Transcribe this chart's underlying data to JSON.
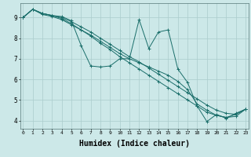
{
  "bg_color": "#cce8e8",
  "grid_color": "#aacccc",
  "line_color": "#1a6e6a",
  "marker": "+",
  "xlabel": "Humidex (Indice chaleur)",
  "xlabel_fontsize": 7,
  "yticks": [
    4,
    5,
    6,
    7,
    8,
    9
  ],
  "xticks": [
    0,
    1,
    2,
    3,
    4,
    5,
    6,
    7,
    8,
    9,
    10,
    11,
    12,
    13,
    14,
    15,
    16,
    17,
    18,
    19,
    20,
    21,
    22,
    23
  ],
  "ylim": [
    3.6,
    9.7
  ],
  "xlim": [
    -0.3,
    23.3
  ],
  "lines": [
    {
      "x": [
        0,
        1,
        2,
        3,
        4,
        5,
        6,
        7,
        8,
        9,
        10,
        11,
        12,
        13,
        14,
        15,
        16,
        17,
        18,
        19,
        20,
        21,
        22,
        23
      ],
      "y": [
        9.0,
        9.4,
        9.2,
        9.1,
        9.05,
        8.85,
        7.65,
        6.65,
        6.6,
        6.65,
        7.0,
        7.0,
        8.9,
        7.5,
        8.3,
        8.4,
        6.5,
        5.85,
        4.7,
        3.95,
        4.3,
        4.1,
        4.35,
        4.55
      ]
    },
    {
      "x": [
        0,
        1,
        2,
        3,
        4,
        5,
        6,
        7,
        8,
        9,
        10,
        11,
        12,
        13,
        14,
        15,
        16,
        17,
        18,
        19,
        20,
        21,
        22,
        23
      ],
      "y": [
        9.0,
        9.4,
        9.2,
        9.1,
        9.0,
        8.8,
        8.55,
        8.3,
        8.0,
        7.7,
        7.4,
        7.1,
        6.85,
        6.55,
        6.25,
        5.95,
        5.65,
        5.35,
        5.05,
        4.75,
        4.5,
        4.35,
        4.3,
        4.55
      ]
    },
    {
      "x": [
        0,
        1,
        2,
        3,
        4,
        5,
        6,
        7,
        8,
        9,
        10,
        11,
        12,
        13,
        14,
        15,
        16,
        17,
        18,
        19,
        20,
        21,
        22,
        23
      ],
      "y": [
        9.0,
        9.4,
        9.2,
        9.1,
        8.95,
        8.7,
        8.4,
        8.1,
        7.75,
        7.45,
        7.1,
        6.8,
        6.5,
        6.2,
        5.9,
        5.6,
        5.3,
        5.0,
        4.7,
        4.4,
        4.25,
        4.15,
        4.2,
        4.55
      ]
    },
    {
      "x": [
        0,
        1,
        2,
        3,
        4,
        5,
        6,
        7,
        8,
        9,
        10,
        11,
        12,
        13,
        14,
        15,
        16,
        17,
        18,
        19,
        20,
        21,
        22,
        23
      ],
      "y": [
        9.0,
        9.4,
        9.15,
        9.05,
        8.9,
        8.65,
        8.4,
        8.15,
        7.85,
        7.55,
        7.25,
        7.0,
        6.8,
        6.6,
        6.4,
        6.2,
        5.9,
        5.5,
        4.8,
        4.5,
        4.25,
        4.15,
        4.3,
        4.55
      ]
    }
  ]
}
